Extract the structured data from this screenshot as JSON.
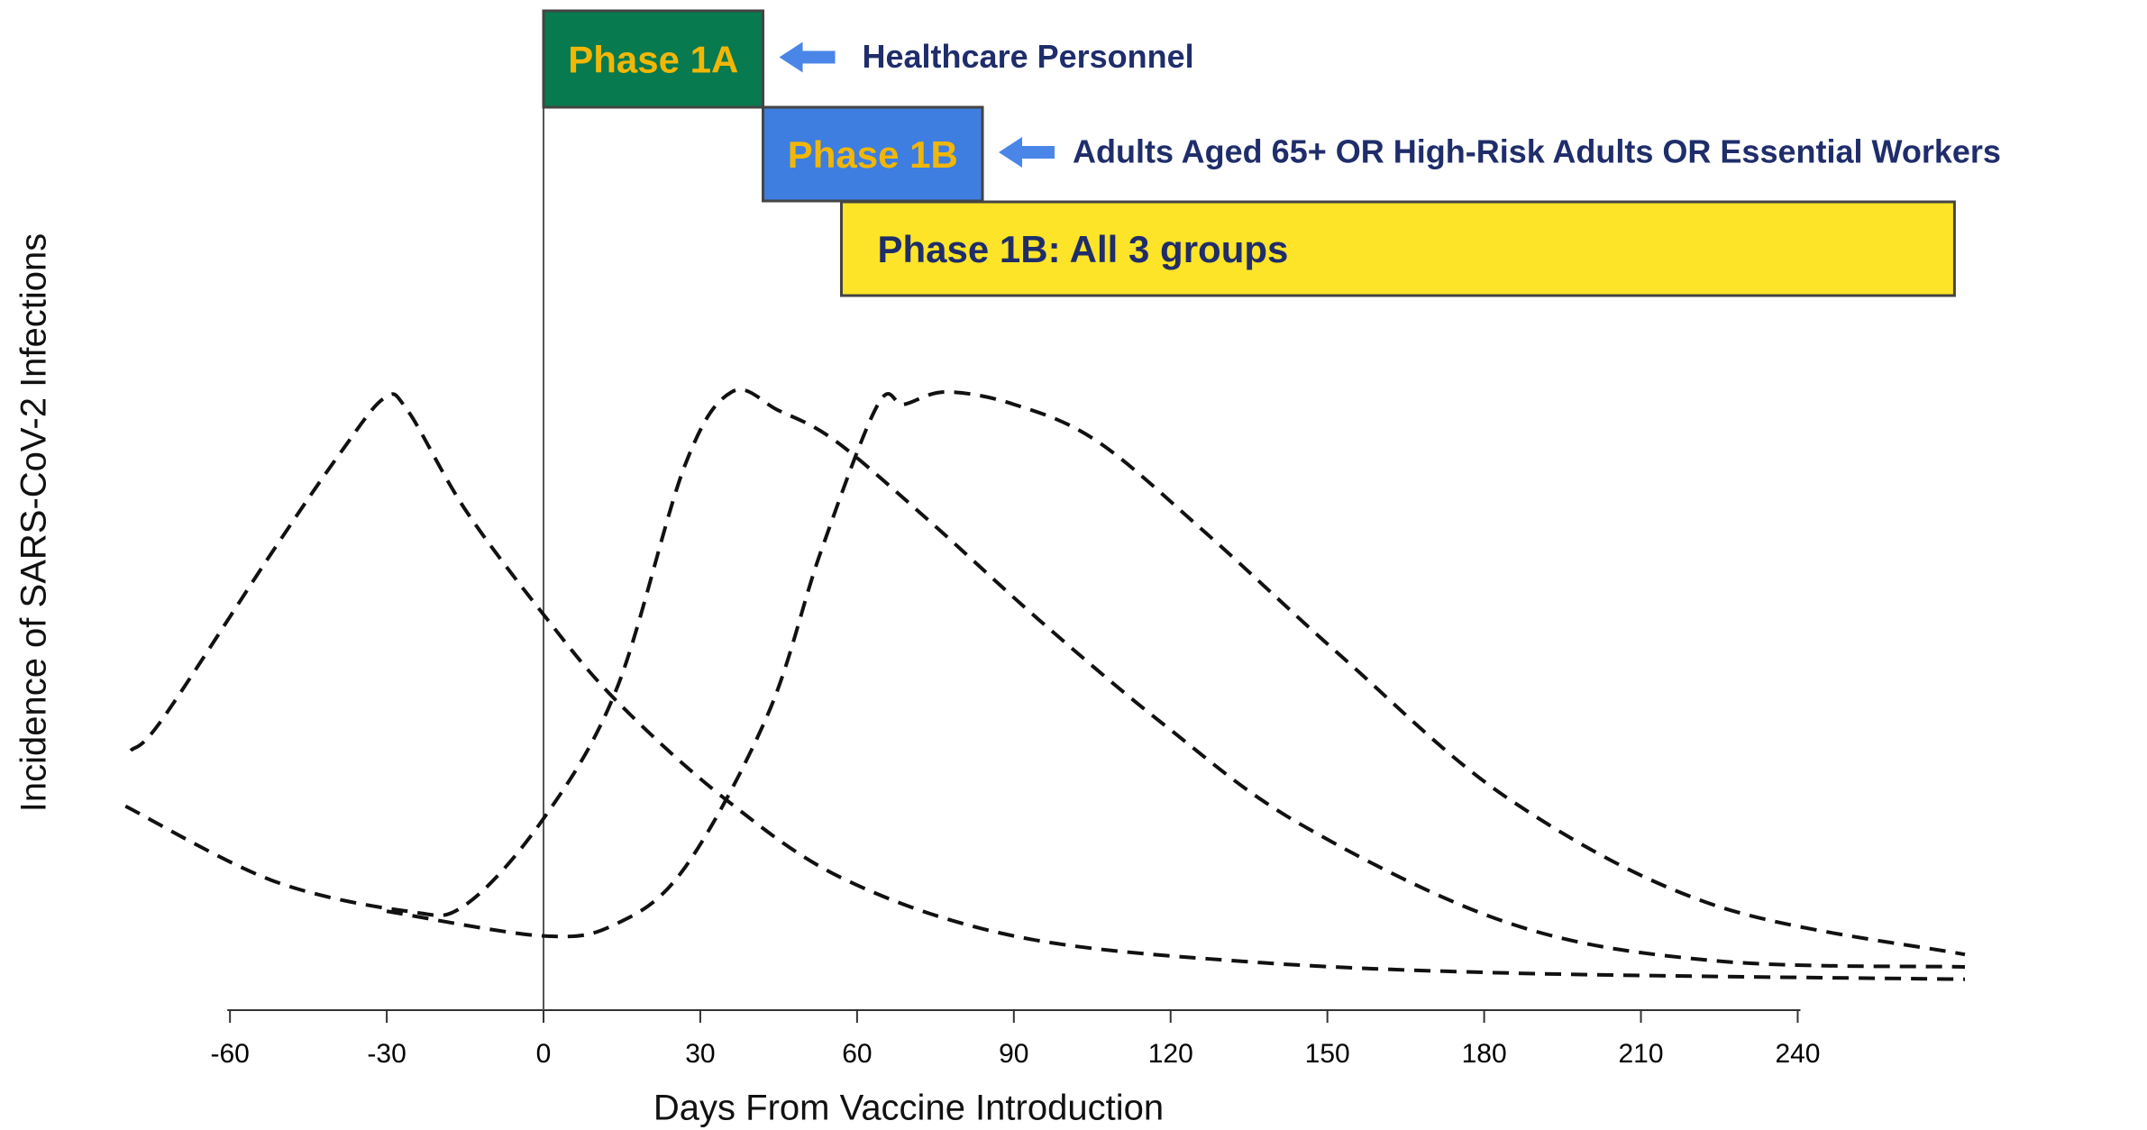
{
  "chart_data": {
    "type": "line",
    "xlabel": "Days From Vaccine Introduction",
    "ylabel": "Incidence of SARS-CoV-2 Infections",
    "xlim": [
      -79,
      272
    ],
    "ylim": [
      0,
      100
    ],
    "xticks": [
      -60,
      -30,
      0,
      30,
      60,
      90,
      120,
      150,
      180,
      210,
      240
    ],
    "series": [
      {
        "color": "#111111",
        "x": [
          -79,
          -73,
          -52,
          -39,
          -30.5,
          -26,
          -15,
          0,
          14,
          35,
          58,
          90,
          132,
          185,
          272
        ],
        "values": [
          42,
          47,
          74,
          90,
          99,
          97,
          81,
          64,
          50,
          34,
          21,
          12,
          8,
          6,
          5
        ]
      },
      {
        "color": "#111111",
        "x": [
          -80,
          -52,
          -26,
          -15,
          0,
          14,
          27,
          36,
          45,
          56,
          74,
          95,
          119,
          145,
          185,
          224,
          272
        ],
        "values": [
          33,
          21,
          16,
          17,
          31,
          52,
          88,
          100,
          97,
          92,
          79,
          63,
          46,
          30,
          14,
          8,
          7
        ]
      },
      {
        "color": "#111111",
        "x": [
          -30,
          0,
          14,
          27,
          43,
          53,
          64,
          69,
          77,
          90,
          106,
          127,
          153,
          185,
          224,
          272
        ],
        "values": [
          16,
          12,
          14,
          23,
          48,
          74,
          98,
          98,
          100,
          98,
          92,
          77,
          57,
          34,
          17,
          9
        ]
      }
    ],
    "vline_x": 0,
    "phases": [
      {
        "label": "Phase 1A",
        "x": [
          0,
          42
        ],
        "fill": "#077a4f",
        "text_color": "#f2b705",
        "callout": "Healthcare Personnel",
        "callout_color": "#4a86e8"
      },
      {
        "label": "Phase 1B",
        "x": [
          42,
          84
        ],
        "fill": "#3d7ee0",
        "text_color": "#f2b705",
        "callout": "Adults Aged 65+ OR High-Risk Adults OR Essential Workers",
        "callout_color": "#4a86e8"
      },
      {
        "label": "Phase 1B: All 3 groups",
        "x": [
          57,
          270
        ],
        "fill": "#fde428",
        "text_color": "#1f2d6b"
      }
    ]
  }
}
